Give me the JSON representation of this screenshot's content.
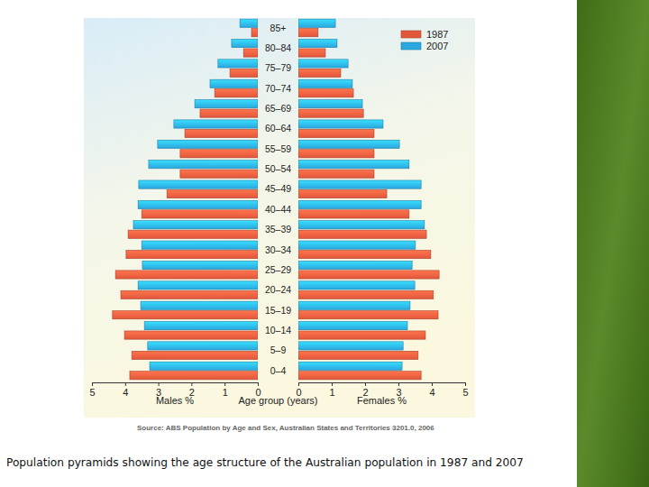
{
  "chart_data": {
    "type": "bar",
    "orientation": "horizontal",
    "legend": "top-right",
    "categories": [
      "0–4",
      "5–9",
      "10–14",
      "15–19",
      "20–24",
      "25–29",
      "30–34",
      "35–39",
      "40–44",
      "45–49",
      "50–54",
      "55–59",
      "60–64",
      "65–69",
      "70–74",
      "75–79",
      "80–84",
      "85+"
    ],
    "category_label": "Age group (years)",
    "series": [
      {
        "name": "1987",
        "color": "#e2573a",
        "males": [
          3.86,
          3.8,
          4.02,
          4.38,
          4.13,
          4.29,
          3.97,
          3.91,
          3.5,
          2.74,
          2.34,
          2.34,
          2.2,
          1.74,
          1.3,
          0.84,
          0.43,
          0.19
        ],
        "females": [
          3.68,
          3.59,
          3.81,
          4.19,
          4.05,
          4.22,
          3.97,
          3.84,
          3.32,
          2.65,
          2.27,
          2.27,
          2.27,
          1.95,
          1.65,
          1.27,
          0.81,
          0.59
        ]
      },
      {
        "name": "2007",
        "color": "#2aa7de",
        "males": [
          3.26,
          3.32,
          3.42,
          3.53,
          3.61,
          3.48,
          3.5,
          3.75,
          3.61,
          3.59,
          3.29,
          3.02,
          2.53,
          1.9,
          1.44,
          1.2,
          0.79,
          0.54
        ],
        "females": [
          3.11,
          3.14,
          3.27,
          3.35,
          3.49,
          3.41,
          3.51,
          3.78,
          3.68,
          3.68,
          3.32,
          3.03,
          2.54,
          1.92,
          1.62,
          1.49,
          1.16,
          1.11
        ]
      }
    ],
    "panels": [
      {
        "label": "Males %",
        "xlim": [
          5,
          0
        ],
        "xticks": [
          5,
          4,
          3,
          2,
          1,
          0
        ]
      },
      {
        "label": "Females %",
        "xlim": [
          0,
          5
        ],
        "xticks": [
          0,
          1,
          2,
          3,
          4,
          5
        ]
      }
    ],
    "source": "Source: ABS Population by Age and Sex, Australian States and Territories 3201.0, 2006",
    "caption": "Population pyramids showing the age structure of the Australian population in 1987 and 2007"
  }
}
